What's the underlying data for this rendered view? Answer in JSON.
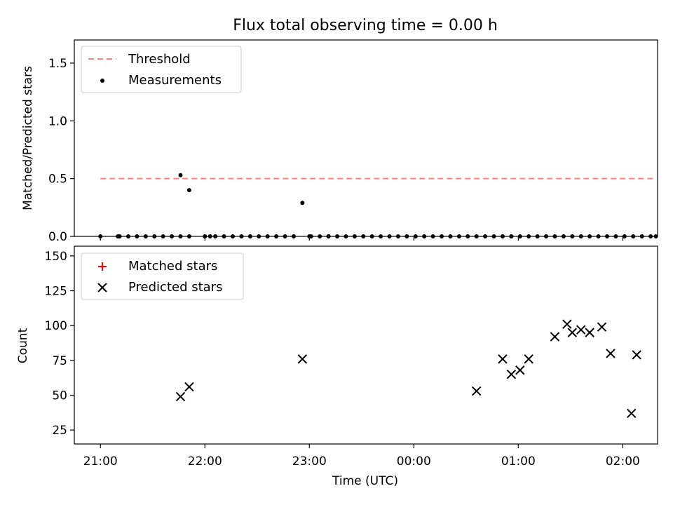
{
  "title": "Flux total observing time = 0.00 h",
  "xlabel": "Time (UTC)",
  "xticks": [
    {
      "t": 0,
      "label": "21:00"
    },
    {
      "t": 60,
      "label": "22:00"
    },
    {
      "t": 120,
      "label": "23:00"
    },
    {
      "t": 180,
      "label": "00:00"
    },
    {
      "t": 240,
      "label": "01:00"
    },
    {
      "t": 300,
      "label": "02:00"
    }
  ],
  "x_range_minutes_after_21h": [
    -15,
    320
  ],
  "colors": {
    "threshold": "#ff7f7f",
    "measurement": "#000000",
    "matched": "#ff0000",
    "predicted": "#000000"
  },
  "chart_data": [
    {
      "type": "scatter",
      "ylabel": "Matched/Predicted stars",
      "ylim": [
        0,
        1.7
      ],
      "yticks": [
        0.0,
        0.5,
        1.0,
        1.5
      ],
      "ytick_labels": [
        "0.0",
        "0.5",
        "1.0",
        "1.5"
      ],
      "legend_position": "top-left",
      "threshold": {
        "name": "Threshold",
        "value": 0.5,
        "x": [
          0,
          319
        ]
      },
      "series": [
        {
          "name": "Measurements",
          "x": [
            0,
            10,
            11,
            16,
            21,
            26,
            31,
            36,
            41,
            46,
            51,
            46,
            51,
            60,
            63,
            66,
            71,
            76,
            81,
            86,
            91,
            96,
            101,
            106,
            116,
            111,
            120,
            121,
            126,
            131,
            131,
            136,
            141,
            146,
            151,
            156,
            161,
            166,
            171,
            176,
            181,
            186,
            191,
            196,
            201,
            206,
            211,
            216,
            221,
            226,
            231,
            236,
            236,
            241,
            246,
            251,
            256,
            261,
            266,
            271,
            276,
            281,
            286,
            291,
            296,
            306,
            301,
            311,
            316,
            319
          ],
          "y": [
            0,
            0,
            0,
            0,
            0,
            0,
            0,
            0,
            0,
            0,
            0,
            0.53,
            0.4,
            0,
            0,
            0,
            0,
            0,
            0,
            0,
            0,
            0,
            0,
            0,
            0.29,
            0,
            0,
            0,
            0,
            0,
            0,
            0,
            0,
            0,
            0,
            0,
            0,
            0,
            0,
            0,
            0,
            0,
            0,
            0,
            0,
            0,
            0,
            0,
            0,
            0,
            0,
            0,
            0,
            0,
            0,
            0,
            0,
            0,
            0,
            0,
            0,
            0,
            0,
            0,
            0,
            0,
            0,
            0,
            0,
            0
          ]
        }
      ]
    },
    {
      "type": "scatter",
      "ylabel": "Count",
      "ylim": [
        15,
        157
      ],
      "yticks": [
        25,
        50,
        75,
        100,
        125,
        150
      ],
      "ytick_labels": [
        "25",
        "50",
        "75",
        "100",
        "125",
        "150"
      ],
      "legend_position": "top-left",
      "series": [
        {
          "name": "Matched stars",
          "marker": "plus",
          "x": [],
          "y": []
        },
        {
          "name": "Predicted stars",
          "marker": "x",
          "x": [
            46,
            51,
            116,
            216,
            231,
            236,
            241,
            246,
            261,
            268,
            271,
            276,
            281,
            288,
            293,
            305,
            308
          ],
          "y": [
            49,
            56,
            76,
            53,
            76,
            65,
            68,
            76,
            92,
            101,
            95,
            97,
            95,
            99,
            80,
            37,
            79
          ]
        }
      ]
    }
  ]
}
